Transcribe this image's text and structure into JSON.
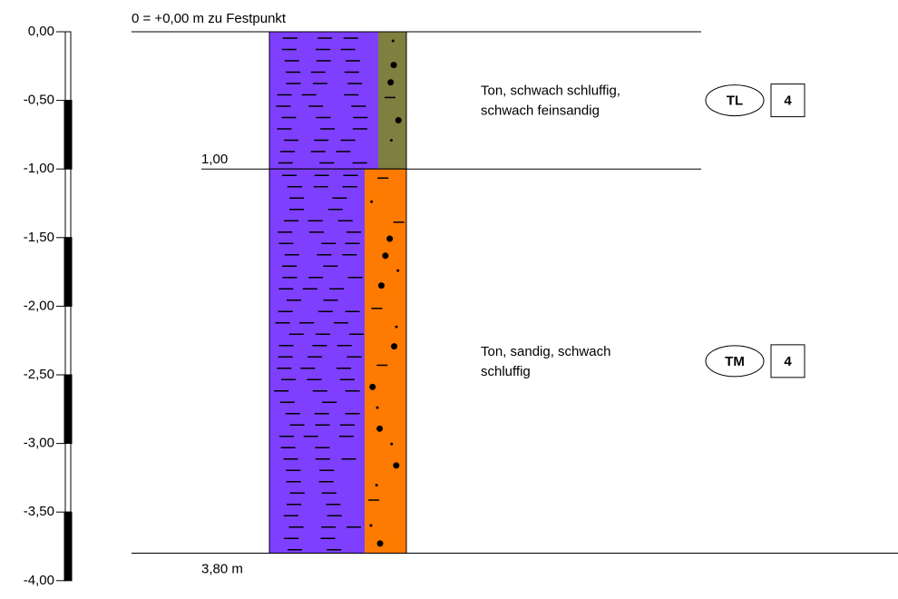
{
  "header": "0 = +0,00 m zu Festpunkt",
  "scale": {
    "ticks": [
      {
        "value": 0,
        "label": "0,00"
      },
      {
        "value": -0.5,
        "label": "-0,50"
      },
      {
        "value": -1,
        "label": "-1,00"
      },
      {
        "value": -1.5,
        "label": "-1,50"
      },
      {
        "value": -2,
        "label": "-2,00"
      },
      {
        "value": -2.5,
        "label": "-2,50"
      },
      {
        "value": -3,
        "label": "-3,00"
      },
      {
        "value": -3.5,
        "label": "-3,50"
      },
      {
        "value": -4,
        "label": "-4,00"
      }
    ]
  },
  "layers": [
    {
      "bottom": {
        "value": 1,
        "label": "1,00"
      },
      "description": [
        "Ton, schwach schluffig,",
        "schwach feinsandig"
      ],
      "code": "TL",
      "class": "4",
      "colors": [
        "#7f3fff",
        "#7f7f40"
      ]
    },
    {
      "bottom": {
        "value": 3.8,
        "label": "3,80 m"
      },
      "description": [
        "Ton, sandig, schwach",
        "schluffig"
      ],
      "code": "TM",
      "class": "4",
      "colors": [
        "#7f3fff",
        "#ff7a00"
      ]
    }
  ]
}
